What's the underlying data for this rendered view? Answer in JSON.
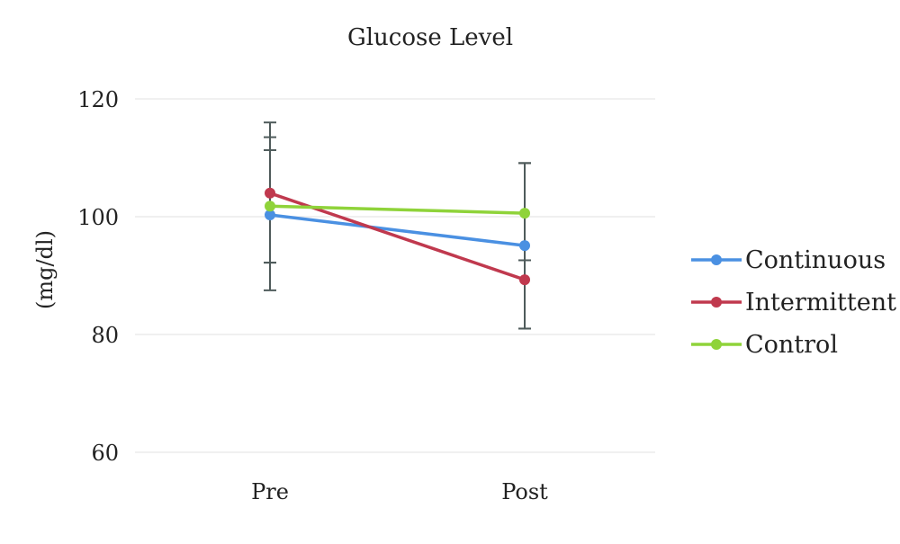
{
  "chart_data": {
    "type": "line",
    "title": "Glucose Level",
    "xlabel": "",
    "ylabel": "(mg/dl)",
    "categories": [
      "Pre",
      "Post"
    ],
    "ylim": [
      60,
      120
    ],
    "yticks": [
      60,
      80,
      100,
      120
    ],
    "grid": true,
    "legend_position": "right",
    "series": [
      {
        "name": "Continuous",
        "color": "#4a90e2",
        "values": [
          100.3,
          95.1
        ],
        "error_low": [
          87.5,
          81.0
        ],
        "error_high": [
          113.5,
          109.1
        ]
      },
      {
        "name": "Intermittent",
        "color": "#c0394e",
        "values": [
          104.0,
          89.3
        ],
        "error_low": [
          92.2,
          81.0
        ],
        "error_high": [
          116.0,
          109.1
        ]
      },
      {
        "name": "Control",
        "color": "#8fd33a",
        "values": [
          101.8,
          100.6
        ],
        "error_low": [
          92.2,
          92.6
        ],
        "error_high": [
          111.3,
          109.1
        ]
      }
    ]
  }
}
